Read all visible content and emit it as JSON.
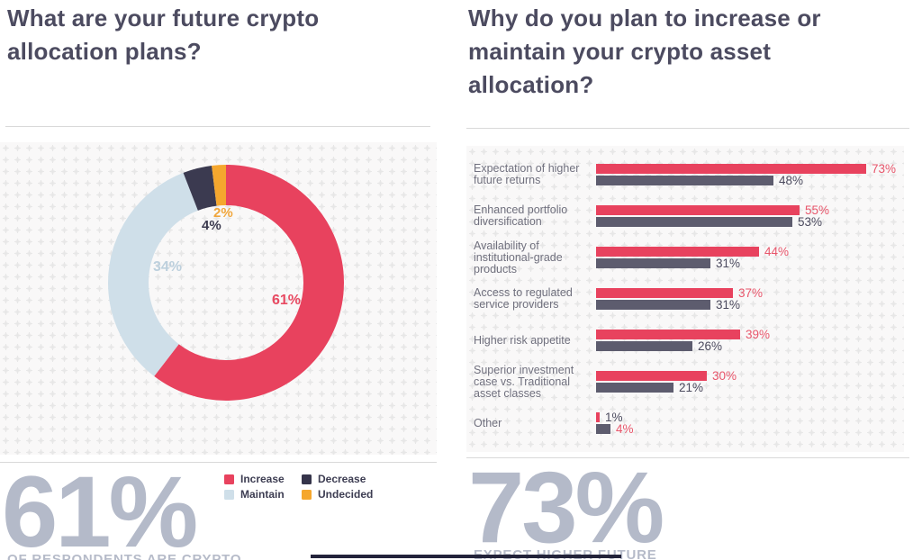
{
  "left_panel": {
    "title": "What are your future crypto allocation plans?",
    "big_stat": {
      "value": "61%",
      "caption": "OF RESPONDENTS ARE CRYPTO"
    },
    "legend": [
      {
        "label": "Increase",
        "color": "#e8425e"
      },
      {
        "label": "Decrease",
        "color": "#35344a"
      },
      {
        "label": "Maintain",
        "color": "#cfdfe9"
      },
      {
        "label": "Undecided",
        "color": "#f5a72e"
      }
    ]
  },
  "right_panel": {
    "title": "Why do you plan to increase or maintain your crypto asset allocation?",
    "big_stat": {
      "value": "73%",
      "caption": "EXPECT HIGHER FUTURE"
    }
  },
  "chart_data": [
    {
      "type": "pie",
      "subtype": "donut",
      "title": "What are your future crypto allocation plans?",
      "start_angle": "top",
      "direction": "clockwise",
      "segments": [
        {
          "label": "Increase",
          "value": 61,
          "display": "61%",
          "color": "#e8425e",
          "label_color": "#e84a62"
        },
        {
          "label": "Maintain",
          "value": 34,
          "display": "34%",
          "color": "#cfdfe9",
          "label_color": "#bdd0dd"
        },
        {
          "label": "Decrease",
          "value": 4,
          "display": "4%",
          "color": "#3b3a50",
          "label_color": "#3b3a4f"
        },
        {
          "label": "Undecided",
          "value": 2,
          "display": "2%",
          "color": "#f5a72e",
          "label_color": "#f0a63c"
        }
      ]
    },
    {
      "type": "bar",
      "orientation": "horizontal",
      "title": "Why do you plan to increase or maintain your crypto asset allocation?",
      "xlim": [
        0,
        84
      ],
      "series_colors": {
        "red": "#e8425e",
        "gray": "#5d5c6e"
      },
      "label_colors": {
        "red": "#e8566b",
        "dark": "#4b4a5e"
      },
      "rows": [
        {
          "category_lines": [
            "Expectation of higher",
            "future returns"
          ],
          "red": {
            "value": 73,
            "label": "73%",
            "label_style": "red"
          },
          "gray": {
            "value": 48,
            "label": "48%",
            "label_style": "dark"
          }
        },
        {
          "category_lines": [
            "Enhanced portfolio",
            "diversification"
          ],
          "red": {
            "value": 55,
            "label": "55%",
            "label_style": "red"
          },
          "gray": {
            "value": 53,
            "label": "53%",
            "label_style": "dark"
          }
        },
        {
          "category_lines": [
            "Availability of",
            "institutional-grade",
            "products"
          ],
          "red": {
            "value": 44,
            "label": "44%",
            "label_style": "red"
          },
          "gray": {
            "value": 31,
            "label": "31%",
            "label_style": "dark"
          }
        },
        {
          "category_lines": [
            "Access to regulated",
            "service providers"
          ],
          "red": {
            "value": 37,
            "label": "37%",
            "label_style": "red"
          },
          "gray": {
            "value": 31,
            "label": "31%",
            "label_style": "dark"
          }
        },
        {
          "category_lines": [
            "Higher risk appetite"
          ],
          "red": {
            "value": 39,
            "label": "39%",
            "label_style": "red"
          },
          "gray": {
            "value": 26,
            "label": "26%",
            "label_style": "dark"
          }
        },
        {
          "category_lines": [
            "Superior investment",
            "case vs. Traditional",
            "asset classes"
          ],
          "red": {
            "value": 30,
            "label": "30%",
            "label_style": "red"
          },
          "gray": {
            "value": 21,
            "label": "21%",
            "label_style": "dark"
          }
        },
        {
          "category_lines": [
            "Other"
          ],
          "red": {
            "value": 1,
            "label": "1%",
            "label_style": "dark"
          },
          "gray": {
            "value": 4,
            "label": "4%",
            "label_style": "red"
          }
        }
      ]
    }
  ]
}
